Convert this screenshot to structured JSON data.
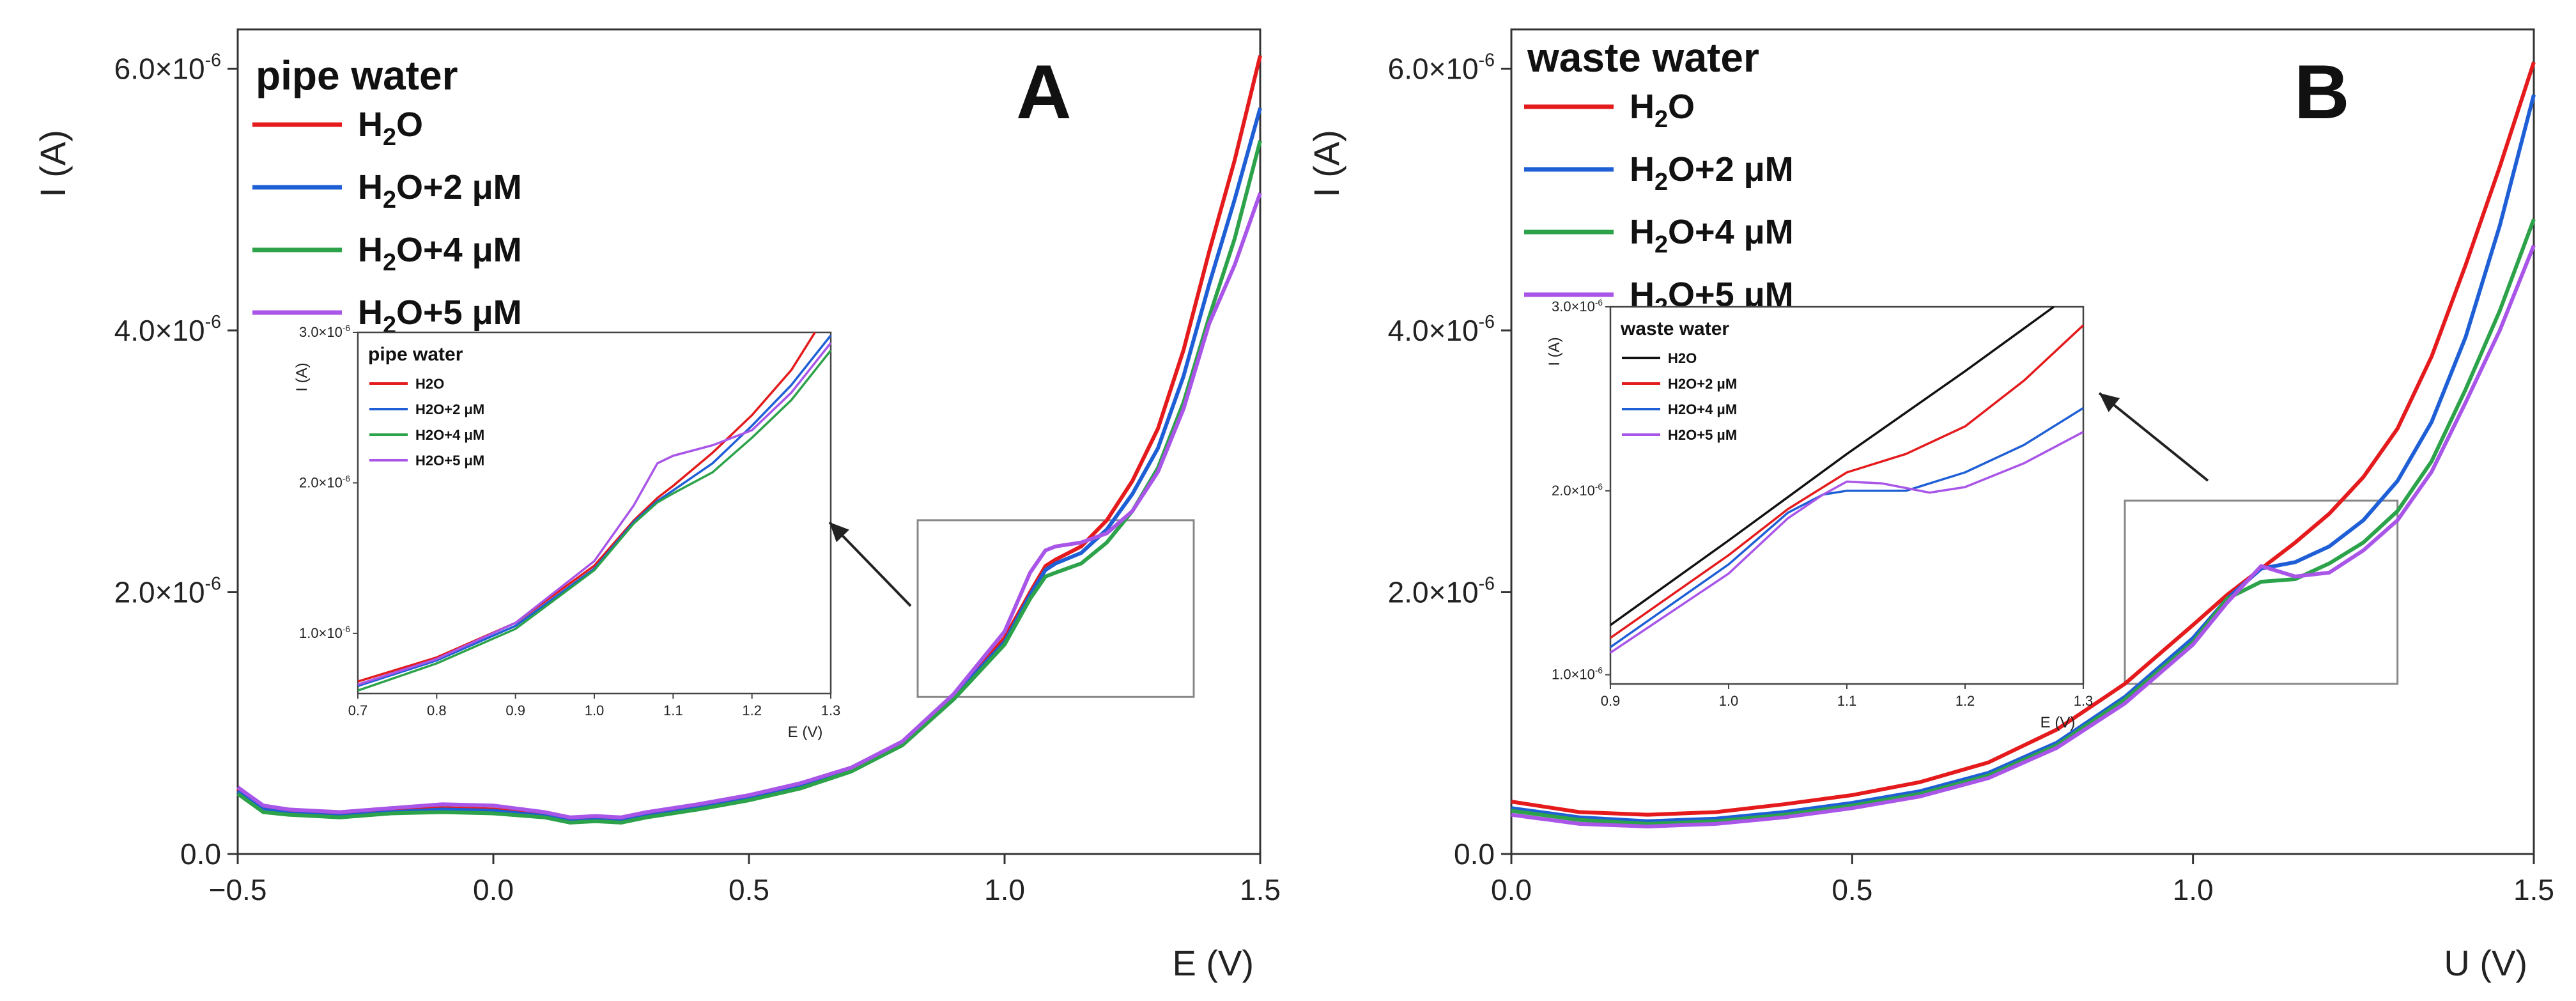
{
  "chart_data": [
    {
      "type": "line",
      "panel_letter": "A",
      "title": "pipe water",
      "xlabel": "E (V)",
      "ylabel": "I (A)",
      "xlim": [
        -0.5,
        1.5
      ],
      "ylim": [
        0,
        6.3e-06
      ],
      "xticks": [
        -0.5,
        0.0,
        0.5,
        1.0,
        1.5
      ],
      "xtick_labels": [
        "−0.5",
        "0.0",
        "0.5",
        "1.0",
        "1.5"
      ],
      "yticks": [
        0,
        2e-06,
        4e-06,
        6e-06
      ],
      "ytick_labels": [
        "0.0",
        "2.0×10",
        "4.0×10",
        "6.0×10"
      ],
      "ytick_exponents": [
        "",
        "-6",
        "-6",
        "-6"
      ],
      "legend_position": "top-left",
      "series": [
        {
          "name": "H2O",
          "label_main": "H",
          "label_sub": "2",
          "label_rest": "O",
          "color": "#e41a1c",
          "x": [
            -0.5,
            -0.45,
            -0.4,
            -0.3,
            -0.2,
            -0.1,
            0.0,
            0.1,
            0.15,
            0.2,
            0.25,
            0.3,
            0.4,
            0.5,
            0.6,
            0.7,
            0.8,
            0.9,
            1.0,
            1.05,
            1.08,
            1.1,
            1.15,
            1.2,
            1.25,
            1.3,
            1.35,
            1.4,
            1.45,
            1.5
          ],
          "y": [
            5e-07,
            3.5e-07,
            3.2e-07,
            3e-07,
            3.3e-07,
            3.5e-07,
            3.4e-07,
            3e-07,
            2.6e-07,
            2.7e-07,
            2.6e-07,
            3e-07,
            3.6e-07,
            4.3e-07,
            5.2e-07,
            6.5e-07,
            8.5e-07,
            1.2e-06,
            1.65e-06,
            2e-06,
            2.2e-06,
            2.25e-06,
            2.35e-06,
            2.55e-06,
            2.85e-06,
            3.25e-06,
            3.85e-06,
            4.6e-06,
            5.3e-06,
            6.1e-06
          ]
        },
        {
          "name": "H2O+2 μM",
          "label_main": "H",
          "label_sub": "2",
          "label_rest": "O+2 μM",
          "color": "#1f5fd6",
          "x": [
            -0.5,
            -0.45,
            -0.4,
            -0.3,
            -0.2,
            -0.1,
            0.0,
            0.1,
            0.15,
            0.2,
            0.25,
            0.3,
            0.4,
            0.5,
            0.6,
            0.7,
            0.8,
            0.9,
            1.0,
            1.05,
            1.08,
            1.1,
            1.15,
            1.2,
            1.25,
            1.3,
            1.35,
            1.4,
            1.45,
            1.5
          ],
          "y": [
            4.8e-07,
            3.4e-07,
            3.1e-07,
            2.9e-07,
            3.2e-07,
            3.4e-07,
            3.3e-07,
            2.9e-07,
            2.5e-07,
            2.6e-07,
            2.5e-07,
            2.9e-07,
            3.5e-07,
            4.2e-07,
            5.1e-07,
            6.4e-07,
            8.4e-07,
            1.2e-06,
            1.62e-06,
            1.98e-06,
            2.17e-06,
            2.22e-06,
            2.3e-06,
            2.48e-06,
            2.75e-06,
            3.1e-06,
            3.65e-06,
            4.35e-06,
            5e-06,
            5.7e-06
          ]
        },
        {
          "name": "H2O+4 μM",
          "label_main": "H",
          "label_sub": "2",
          "label_rest": "O+4 μM",
          "color": "#2ca24a",
          "x": [
            -0.5,
            -0.45,
            -0.4,
            -0.3,
            -0.2,
            -0.1,
            0.0,
            0.1,
            0.15,
            0.2,
            0.25,
            0.3,
            0.4,
            0.5,
            0.6,
            0.7,
            0.8,
            0.9,
            1.0,
            1.05,
            1.08,
            1.1,
            1.15,
            1.2,
            1.25,
            1.3,
            1.35,
            1.4,
            1.45,
            1.5
          ],
          "y": [
            4.6e-07,
            3.2e-07,
            3e-07,
            2.8e-07,
            3.1e-07,
            3.2e-07,
            3.1e-07,
            2.8e-07,
            2.4e-07,
            2.5e-07,
            2.4e-07,
            2.8e-07,
            3.4e-07,
            4.1e-07,
            5e-07,
            6.3e-07,
            8.3e-07,
            1.18e-06,
            1.6e-06,
            1.95e-06,
            2.12e-06,
            2.15e-06,
            2.22e-06,
            2.38e-06,
            2.62e-06,
            2.95e-06,
            3.45e-06,
            4.1e-06,
            4.7e-06,
            5.45e-06
          ]
        },
        {
          "name": "H2O+5 μM",
          "label_main": "H",
          "label_sub": "2",
          "label_rest": "O+5 μM",
          "color": "#a855e8",
          "x": [
            -0.5,
            -0.45,
            -0.4,
            -0.3,
            -0.2,
            -0.1,
            0.0,
            0.1,
            0.15,
            0.2,
            0.25,
            0.3,
            0.4,
            0.5,
            0.6,
            0.7,
            0.8,
            0.9,
            1.0,
            1.05,
            1.08,
            1.1,
            1.15,
            1.2,
            1.25,
            1.3,
            1.35,
            1.4,
            1.45,
            1.5
          ],
          "y": [
            5.1e-07,
            3.7e-07,
            3.4e-07,
            3.2e-07,
            3.5e-07,
            3.8e-07,
            3.7e-07,
            3.2e-07,
            2.8e-07,
            2.9e-07,
            2.8e-07,
            3.2e-07,
            3.8e-07,
            4.5e-07,
            5.4e-07,
            6.6e-07,
            8.6e-07,
            1.22e-06,
            1.7e-06,
            2.15e-06,
            2.32e-06,
            2.35e-06,
            2.38e-06,
            2.45e-06,
            2.62e-06,
            2.92e-06,
            3.4e-06,
            4.05e-06,
            4.5e-06,
            5.05e-06
          ]
        }
      ],
      "inset": {
        "title": "pipe water",
        "xlabel": "E (V)",
        "ylabel": "I (A)",
        "xlim": [
          0.7,
          1.3
        ],
        "ylim": [
          6e-07,
          3e-06
        ],
        "xticks": [
          0.7,
          0.8,
          0.9,
          1.0,
          1.1,
          1.2,
          1.3
        ],
        "xtick_labels": [
          "0.7",
          "0.8",
          "0.9",
          "1.0",
          "1.1",
          "1.2",
          "1.3"
        ],
        "yticks": [
          1e-06,
          2e-06,
          3e-06
        ],
        "ytick_labels": [
          "1.0×10",
          "2.0×10",
          "3.0×10"
        ],
        "ytick_exponents": [
          "-6",
          "-6",
          "-6"
        ],
        "zoom_region": {
          "x": [
            0.83,
            1.37
          ],
          "y": [
            1.2e-06,
            2.55e-06
          ]
        },
        "series": [
          {
            "name": "H2O",
            "color": "#e41a1c",
            "x": [
              0.7,
              0.8,
              0.9,
              1.0,
              1.05,
              1.08,
              1.1,
              1.15,
              1.2,
              1.25,
              1.28
            ],
            "y": [
              6.8e-07,
              8.4e-07,
              1.07e-06,
              1.45e-06,
              1.75e-06,
              1.9e-06,
              1.98e-06,
              2.2e-06,
              2.45e-06,
              2.75e-06,
              3e-06
            ]
          },
          {
            "name": "H2O+2 μM",
            "color": "#1f5fd6",
            "x": [
              0.7,
              0.8,
              0.9,
              1.0,
              1.05,
              1.08,
              1.1,
              1.15,
              1.2,
              1.25,
              1.3
            ],
            "y": [
              6.5e-07,
              8.2e-07,
              1.05e-06,
              1.43e-06,
              1.74e-06,
              1.88e-06,
              1.95e-06,
              2.13e-06,
              2.38e-06,
              2.65e-06,
              2.98e-06
            ]
          },
          {
            "name": "H2O+4 μM",
            "color": "#2ca24a",
            "x": [
              0.7,
              0.8,
              0.9,
              1.0,
              1.05,
              1.08,
              1.1,
              1.15,
              1.2,
              1.25,
              1.3
            ],
            "y": [
              6.2e-07,
              8e-07,
              1.03e-06,
              1.42e-06,
              1.73e-06,
              1.87e-06,
              1.93e-06,
              2.07e-06,
              2.3e-06,
              2.55e-06,
              2.88e-06
            ]
          },
          {
            "name": "H2O+5 μM",
            "color": "#a855e8",
            "x": [
              0.7,
              0.8,
              0.9,
              1.0,
              1.05,
              1.08,
              1.1,
              1.15,
              1.2,
              1.25,
              1.3
            ],
            "y": [
              6.6e-07,
              8.3e-07,
              1.07e-06,
              1.48e-06,
              1.85e-06,
              2.13e-06,
              2.18e-06,
              2.25e-06,
              2.35e-06,
              2.6e-06,
              2.93e-06
            ]
          }
        ]
      }
    },
    {
      "type": "line",
      "panel_letter": "B",
      "title": "waste water",
      "xlabel": "U (V)",
      "ylabel": "I (A)",
      "xlim": [
        0.0,
        1.5
      ],
      "ylim": [
        0,
        6.3e-06
      ],
      "xticks": [
        0.0,
        0.5,
        1.0,
        1.5
      ],
      "xtick_labels": [
        "0.0",
        "0.5",
        "1.0",
        "1.5"
      ],
      "yticks": [
        0,
        2e-06,
        4e-06,
        6e-06
      ],
      "ytick_labels": [
        "0.0",
        "2.0×10",
        "4.0×10",
        "6.0×10"
      ],
      "ytick_exponents": [
        "",
        "-6",
        "-6",
        "-6"
      ],
      "legend_position": "top-left",
      "series": [
        {
          "name": "H2O",
          "label_main": "H",
          "label_sub": "2",
          "label_rest": "O",
          "color": "#e41a1c",
          "x": [
            0.0,
            0.1,
            0.2,
            0.3,
            0.4,
            0.5,
            0.6,
            0.7,
            0.8,
            0.9,
            1.0,
            1.05,
            1.1,
            1.15,
            1.2,
            1.25,
            1.3,
            1.35,
            1.4,
            1.45,
            1.5
          ],
          "y": [
            4e-07,
            3.2e-07,
            3e-07,
            3.2e-07,
            3.8e-07,
            4.5e-07,
            5.5e-07,
            7e-07,
            9.5e-07,
            1.3e-06,
            1.75e-06,
            1.98e-06,
            2.18e-06,
            2.38e-06,
            2.6e-06,
            2.88e-06,
            3.25e-06,
            3.8e-06,
            4.5e-06,
            5.25e-06,
            6.05e-06
          ]
        },
        {
          "name": "H2O+2 μM",
          "label_main": "H",
          "label_sub": "2",
          "label_rest": "O+2 μM",
          "color": "#1f5fd6",
          "x": [
            0.0,
            0.1,
            0.2,
            0.3,
            0.4,
            0.5,
            0.6,
            0.7,
            0.8,
            0.9,
            1.0,
            1.05,
            1.1,
            1.15,
            1.2,
            1.25,
            1.3,
            1.35,
            1.4,
            1.45,
            1.5
          ],
          "y": [
            3.5e-07,
            2.8e-07,
            2.5e-07,
            2.7e-07,
            3.2e-07,
            3.9e-07,
            4.8e-07,
            6.2e-07,
            8.5e-07,
            1.2e-06,
            1.65e-06,
            1.95e-06,
            2.18e-06,
            2.23e-06,
            2.35e-06,
            2.55e-06,
            2.85e-06,
            3.3e-06,
            3.95e-06,
            4.8e-06,
            5.8e-06
          ]
        },
        {
          "name": "H2O+4 μM",
          "label_main": "H",
          "label_sub": "2",
          "label_rest": "O+4 μM",
          "color": "#2ca24a",
          "x": [
            0.0,
            0.1,
            0.2,
            0.3,
            0.4,
            0.5,
            0.6,
            0.7,
            0.8,
            0.9,
            1.0,
            1.05,
            1.1,
            1.15,
            1.2,
            1.25,
            1.3,
            1.35,
            1.4,
            1.45,
            1.5
          ],
          "y": [
            3.3e-07,
            2.6e-07,
            2.3e-07,
            2.5e-07,
            3e-07,
            3.7e-07,
            4.6e-07,
            6e-07,
            8.3e-07,
            1.18e-06,
            1.62e-06,
            1.95e-06,
            2.08e-06,
            2.1e-06,
            2.22e-06,
            2.38e-06,
            2.62e-06,
            3e-06,
            3.55e-06,
            4.15e-06,
            4.85e-06
          ]
        },
        {
          "name": "H2O+5 μM",
          "label_main": "H",
          "label_sub": "2",
          "label_rest": "O+5 μM",
          "color": "#a855e8",
          "x": [
            0.0,
            0.1,
            0.2,
            0.3,
            0.4,
            0.5,
            0.6,
            0.7,
            0.8,
            0.9,
            1.0,
            1.05,
            1.1,
            1.15,
            1.2,
            1.25,
            1.3,
            1.35,
            1.4,
            1.45,
            1.5
          ],
          "y": [
            3e-07,
            2.3e-07,
            2.1e-07,
            2.3e-07,
            2.8e-07,
            3.5e-07,
            4.4e-07,
            5.8e-07,
            8.1e-07,
            1.15e-06,
            1.6e-06,
            1.92e-06,
            2.2e-06,
            2.12e-06,
            2.15e-06,
            2.32e-06,
            2.55e-06,
            2.92e-06,
            3.45e-06,
            4e-06,
            4.65e-06
          ]
        }
      ],
      "inset": {
        "title": "waste water",
        "xlabel": "E (V)",
        "ylabel": "I (A)",
        "xlim": [
          0.9,
          1.3
        ],
        "ylim": [
          9.5e-07,
          3e-06
        ],
        "xticks": [
          0.9,
          1.0,
          1.1,
          1.2,
          1.3
        ],
        "xtick_labels": [
          "0.9",
          "1.0",
          "1.1",
          "1.2",
          "1.3"
        ],
        "yticks": [
          1e-06,
          2e-06,
          3e-06
        ],
        "ytick_labels": [
          "1.0×10",
          "2.0×10",
          "3.0×10"
        ],
        "ytick_exponents": [
          "-6",
          "-6",
          "-6"
        ],
        "zoom_region": {
          "x": [
            0.9,
            1.3
          ],
          "y": [
            1.3e-06,
            2.7e-06
          ]
        },
        "series": [
          {
            "name": "H2O",
            "color": "#111111",
            "x": [
              0.9,
              1.0,
              1.1,
              1.2,
              1.275
            ],
            "y": [
              1.27e-06,
              1.73e-06,
              2.2e-06,
              2.65e-06,
              3e-06
            ]
          },
          {
            "name": "H2O+2 μM",
            "color": "#e41a1c",
            "x": [
              0.9,
              1.0,
              1.05,
              1.1,
              1.15,
              1.2,
              1.25,
              1.3
            ],
            "y": [
              1.2e-06,
              1.65e-06,
              1.9e-06,
              2.1e-06,
              2.2e-06,
              2.35e-06,
              2.6e-06,
              2.9e-06
            ]
          },
          {
            "name": "H2O+4 μM",
            "color": "#1f5fd6",
            "x": [
              0.9,
              1.0,
              1.05,
              1.08,
              1.1,
              1.15,
              1.2,
              1.25,
              1.3
            ],
            "y": [
              1.15e-06,
              1.6e-06,
              1.88e-06,
              1.98e-06,
              2e-06,
              2e-06,
              2.1e-06,
              2.25e-06,
              2.45e-06
            ]
          },
          {
            "name": "H2O+5 μM",
            "color": "#a855e8",
            "x": [
              0.9,
              1.0,
              1.05,
              1.08,
              1.1,
              1.13,
              1.17,
              1.2,
              1.25,
              1.3
            ],
            "y": [
              1.12e-06,
              1.55e-06,
              1.85e-06,
              1.98e-06,
              2.05e-06,
              2.04e-06,
              1.99e-06,
              2.02e-06,
              2.15e-06,
              2.32e-06
            ]
          }
        ]
      }
    }
  ]
}
